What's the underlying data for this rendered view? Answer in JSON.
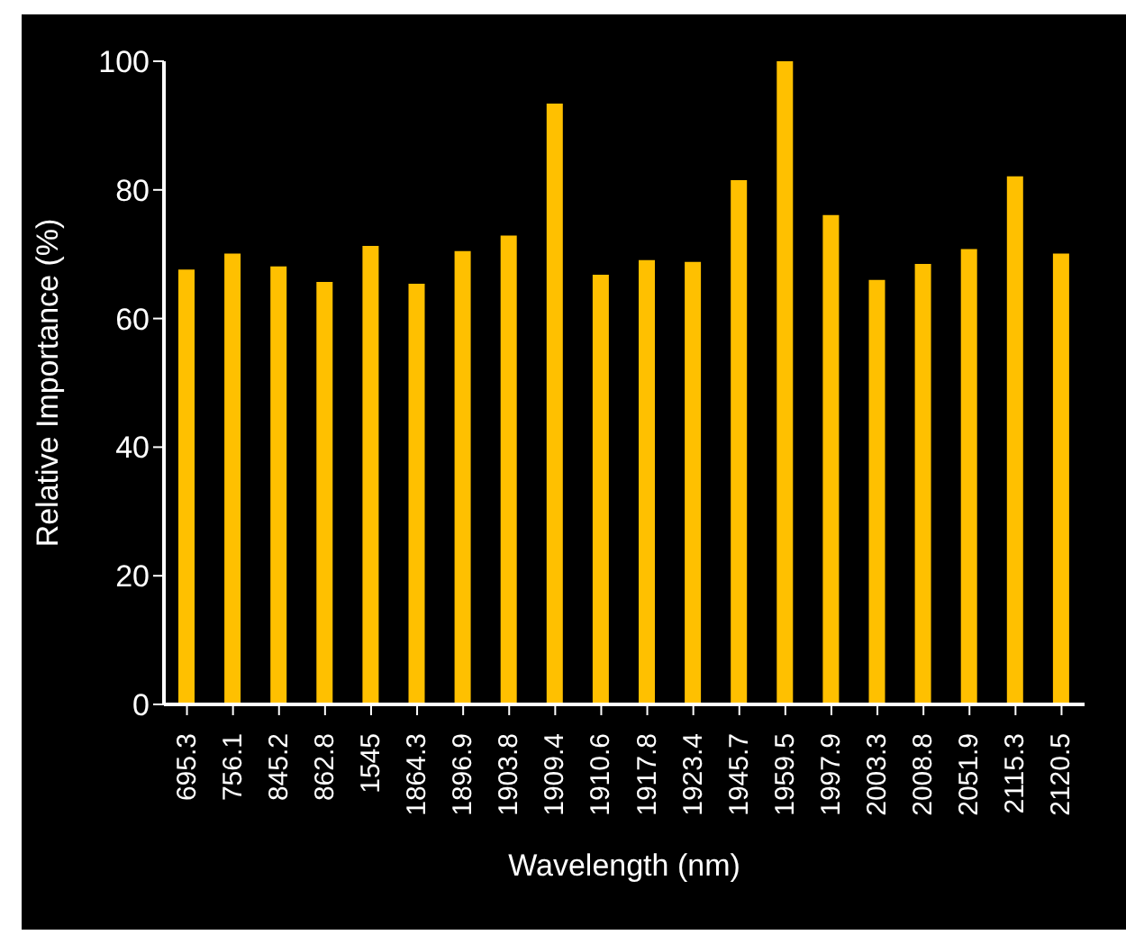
{
  "chart_data": {
    "type": "bar",
    "xlabel": "Wavelength (nm)",
    "ylabel": "Relative Importance (%)",
    "categories": [
      "695.3",
      "756.1",
      "845.2",
      "862.8",
      "1545",
      "1864.3",
      "1896.9",
      "1903.8",
      "1909.4",
      "1910.6",
      "1917.8",
      "1923.4",
      "1945.7",
      "1959.5",
      "1997.9",
      "2003.3",
      "2008.8",
      "2051.9",
      "2115.3",
      "2120.5"
    ],
    "values": [
      67.6,
      70.1,
      68.1,
      65.7,
      71.3,
      65.4,
      70.5,
      72.9,
      93.4,
      66.8,
      69.1,
      68.8,
      81.5,
      100,
      76.1,
      66.0,
      68.5,
      70.8,
      82.1,
      70.1
    ],
    "color": "#ffc000",
    "ylim": [
      0,
      100
    ],
    "yticks": [
      0,
      20,
      40,
      60,
      80,
      100
    ],
    "grid": false,
    "legend": false
  }
}
